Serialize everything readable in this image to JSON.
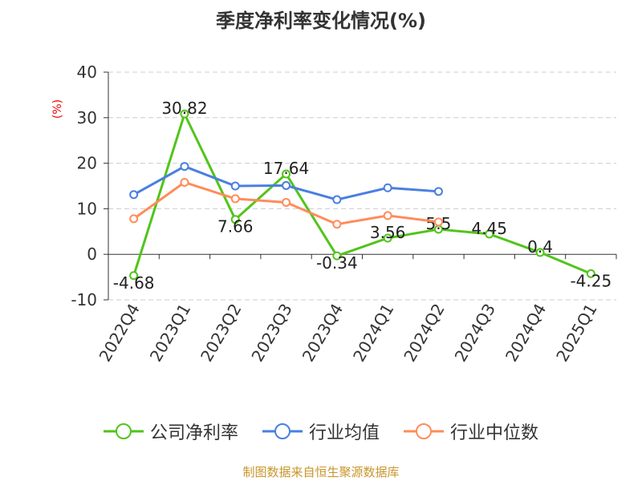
{
  "chart_data": {
    "type": "line",
    "title": "季度净利率变化情况(%)",
    "ylabel": "(%)",
    "xlabel": "",
    "ylim": [
      -10,
      40
    ],
    "yticks": [
      -10,
      0,
      10,
      20,
      30,
      40
    ],
    "grid": true,
    "legend_position": "bottom",
    "categories": [
      "2022Q4",
      "2023Q1",
      "2023Q2",
      "2023Q3",
      "2023Q4",
      "2024Q1",
      "2024Q2",
      "2024Q3",
      "2024Q4",
      "2025Q1"
    ],
    "series": [
      {
        "name": "公司净利率",
        "color": "#52c41a",
        "labels": true,
        "values": [
          -4.68,
          30.82,
          7.66,
          17.64,
          -0.34,
          3.56,
          5.5,
          4.45,
          0.4,
          -4.25
        ]
      },
      {
        "name": "行业均值",
        "color": "#4a7fe0",
        "labels": false,
        "values": [
          13.1,
          19.3,
          15.0,
          15.1,
          12.0,
          14.6,
          13.8,
          null,
          null,
          null
        ]
      },
      {
        "name": "行业中位数",
        "color": "#ff8c5a",
        "labels": false,
        "values": [
          7.8,
          15.8,
          12.2,
          11.4,
          6.6,
          8.5,
          7.1,
          null,
          null,
          null
        ]
      }
    ]
  },
  "source": "制图数据来自恒生聚源数据库"
}
